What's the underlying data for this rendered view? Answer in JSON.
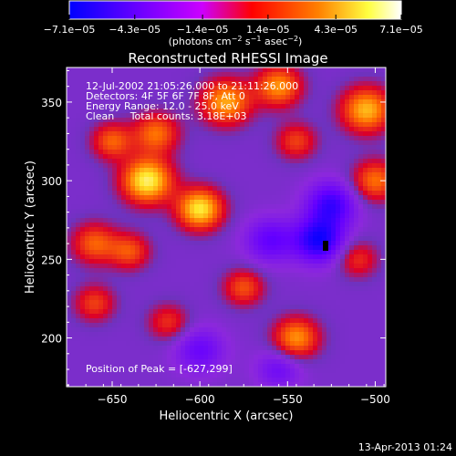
{
  "chart_data": {
    "type": "heatmap",
    "title": "Reconstructed RHESSI Image",
    "xlabel": "Heliocentric X (arcsec)",
    "ylabel": "Heliocentric Y (arcsec)",
    "xlim": [
      -676,
      -494
    ],
    "ylim": [
      169,
      372
    ],
    "x_ticks": [
      -650,
      -600,
      -550,
      -500
    ],
    "x_tick_labels": [
      "−650",
      "−600",
      "−550",
      "−500"
    ],
    "y_ticks": [
      200,
      250,
      300,
      350
    ],
    "y_tick_labels": [
      "200",
      "250",
      "300",
      "350"
    ],
    "colorbar": {
      "range": [
        -7.1e-05,
        7.1e-05
      ],
      "tick_values": [
        -7.1e-05,
        -4.3e-05,
        -1.4e-05,
        1.4e-05,
        4.3e-05,
        7.1e-05
      ],
      "tick_labels": [
        "−7.1e−05",
        "−4.3e−05",
        "−1.4e−05",
        "1.4e−05",
        "4.3e−05",
        "7.1e−05"
      ],
      "units_text": "(photons cm",
      "units_sup1": "−2",
      "units_mid": " s",
      "units_sup2": "−1",
      "units_mid2": " asec",
      "units_sup3": "−2",
      "units_end": ")",
      "colors": [
        "#0000ff",
        "#6600ff",
        "#cc00ff",
        "#ff0000",
        "#ff8000",
        "#ffff40",
        "#ffffff"
      ]
    },
    "annotations": [
      "12-Jul-2002 21:05:26.000 to 21:11:26.000",
      "Detectors: 4F 5F 6F 7F 8F, Att 0",
      "Energy Range: 12.0 - 25.0 keV",
      "Clean     Total counts: 3.18E+03"
    ],
    "peak_label": "Position of Peak = [-627,299]",
    "peak": [
      -627,
      299
    ],
    "sources": [
      {
        "x": -630,
        "y": 300,
        "amp": 1.0,
        "sigma": 10
      },
      {
        "x": -600,
        "y": 282,
        "amp": 0.95,
        "sigma": 9
      },
      {
        "x": -650,
        "y": 325,
        "amp": 0.55,
        "sigma": 8
      },
      {
        "x": -625,
        "y": 330,
        "amp": 0.6,
        "sigma": 9
      },
      {
        "x": -585,
        "y": 350,
        "amp": 0.75,
        "sigma": 10
      },
      {
        "x": -555,
        "y": 360,
        "amp": 0.7,
        "sigma": 9
      },
      {
        "x": -545,
        "y": 325,
        "amp": 0.45,
        "sigma": 8
      },
      {
        "x": -505,
        "y": 345,
        "amp": 0.8,
        "sigma": 10
      },
      {
        "x": -500,
        "y": 300,
        "amp": 0.6,
        "sigma": 9
      },
      {
        "x": -660,
        "y": 260,
        "amp": 0.55,
        "sigma": 9
      },
      {
        "x": -640,
        "y": 255,
        "amp": 0.5,
        "sigma": 8
      },
      {
        "x": -660,
        "y": 222,
        "amp": 0.45,
        "sigma": 8
      },
      {
        "x": -618,
        "y": 210,
        "amp": 0.4,
        "sigma": 8
      },
      {
        "x": -575,
        "y": 232,
        "amp": 0.5,
        "sigma": 8
      },
      {
        "x": -545,
        "y": 200,
        "amp": 0.7,
        "sigma": 9
      },
      {
        "x": -510,
        "y": 250,
        "amp": 0.4,
        "sigma": 8
      },
      {
        "x": -532,
        "y": 262,
        "amp": -0.75,
        "sigma": 10
      },
      {
        "x": -525,
        "y": 285,
        "amp": -0.6,
        "sigma": 10
      },
      {
        "x": -560,
        "y": 262,
        "amp": -0.45,
        "sigma": 10
      },
      {
        "x": -600,
        "y": 192,
        "amp": -0.4,
        "sigma": 10
      },
      {
        "x": -555,
        "y": 180,
        "amp": -0.35,
        "sigma": 9
      }
    ]
  },
  "footer": {
    "timestamp": "13-Apr-2013 01:24"
  }
}
